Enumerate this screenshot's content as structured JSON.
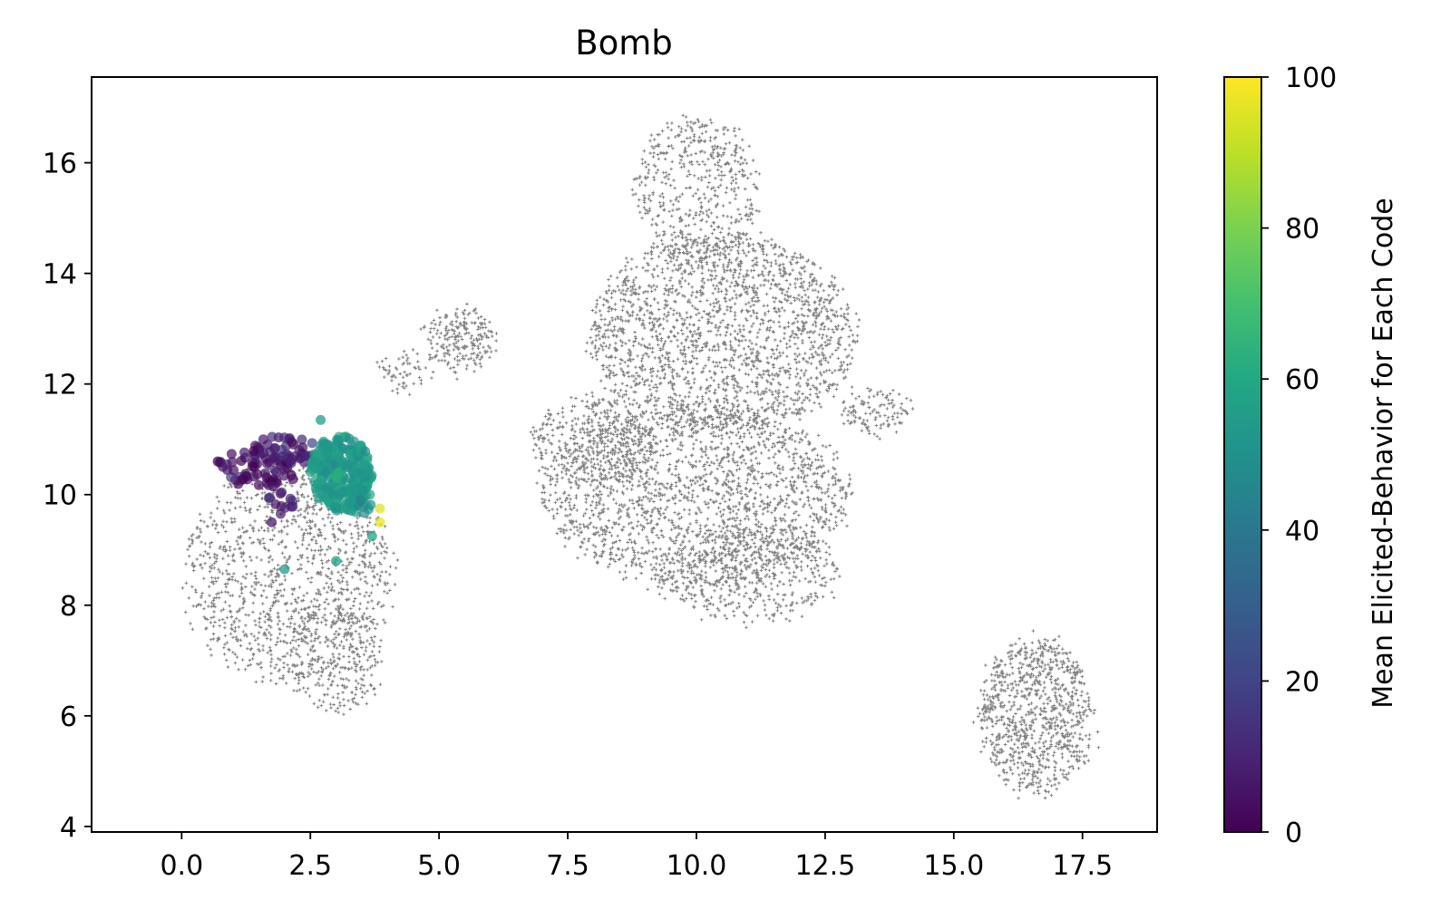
{
  "chart_data": {
    "type": "scatter",
    "title": "Bomb",
    "xlabel": "",
    "ylabel": "",
    "xlim": [
      -1.75,
      18.95
    ],
    "ylim": [
      3.9,
      17.55
    ],
    "x_ticks": [
      0.0,
      2.5,
      5.0,
      7.5,
      10.0,
      12.5,
      15.0,
      17.5
    ],
    "x_tick_labels": [
      "0.0",
      "2.5",
      "5.0",
      "7.5",
      "10.0",
      "12.5",
      "15.0",
      "17.5"
    ],
    "y_ticks": [
      4,
      6,
      8,
      10,
      12,
      14,
      16
    ],
    "y_tick_labels": [
      "4",
      "6",
      "8",
      "10",
      "12",
      "14",
      "16"
    ],
    "grid": false,
    "background_series": {
      "marker": "+",
      "color": "#808080",
      "regions": [
        {
          "cx": 2.1,
          "cy": 8.6,
          "rx": 2.0,
          "ry": 2.0,
          "n": 1300
        },
        {
          "cx": 3.0,
          "cy": 7.0,
          "rx": 0.9,
          "ry": 1.0,
          "n": 250
        },
        {
          "cx": 5.4,
          "cy": 12.8,
          "rx": 0.7,
          "ry": 0.55,
          "n": 220
        },
        {
          "cx": 4.3,
          "cy": 12.2,
          "rx": 0.5,
          "ry": 0.35,
          "n": 60
        },
        {
          "cx": 10.0,
          "cy": 15.5,
          "rx": 1.2,
          "ry": 1.3,
          "n": 500
        },
        {
          "cx": 10.5,
          "cy": 12.9,
          "rx": 2.6,
          "ry": 1.8,
          "n": 2000
        },
        {
          "cx": 10.0,
          "cy": 10.0,
          "rx": 3.0,
          "ry": 1.6,
          "n": 1900
        },
        {
          "cx": 11.0,
          "cy": 8.6,
          "rx": 1.8,
          "ry": 0.9,
          "n": 500
        },
        {
          "cx": 8.0,
          "cy": 11.0,
          "rx": 1.2,
          "ry": 0.8,
          "n": 400
        },
        {
          "cx": 13.5,
          "cy": 11.5,
          "rx": 0.7,
          "ry": 0.35,
          "n": 120
        },
        {
          "cx": 16.6,
          "cy": 6.0,
          "rx": 1.1,
          "ry": 1.4,
          "n": 900
        }
      ]
    },
    "highlight_series": {
      "colorbar_label": "Mean Elicited-Behavior for Each Code",
      "colorbar_range": [
        0,
        100
      ],
      "colorbar_ticks": [
        0,
        20,
        40,
        60,
        80,
        100
      ],
      "colormap": "viridis",
      "clusters": [
        {
          "cx": 1.5,
          "cy": 10.5,
          "rx": 0.8,
          "ry": 0.4,
          "value": 5,
          "n": 70
        },
        {
          "cx": 2.0,
          "cy": 10.8,
          "rx": 0.6,
          "ry": 0.3,
          "value": 8,
          "n": 30
        },
        {
          "cx": 1.9,
          "cy": 9.9,
          "rx": 0.35,
          "ry": 0.3,
          "value": 10,
          "n": 12
        },
        {
          "cx": 3.1,
          "cy": 10.4,
          "rx": 0.6,
          "ry": 0.7,
          "value": 54,
          "n": 260
        },
        {
          "cx": 3.5,
          "cy": 9.9,
          "rx": 0.3,
          "ry": 0.3,
          "value": 52,
          "n": 25
        }
      ],
      "points": [
        {
          "x": 2.0,
          "y": 8.65,
          "value": 55
        },
        {
          "x": 3.0,
          "y": 8.8,
          "value": 56
        },
        {
          "x": 3.7,
          "y": 9.25,
          "value": 58
        },
        {
          "x": 1.75,
          "y": 9.5,
          "value": 8
        },
        {
          "x": 3.85,
          "y": 9.5,
          "value": 97
        },
        {
          "x": 3.85,
          "y": 9.75,
          "value": 95
        },
        {
          "x": 2.7,
          "y": 11.35,
          "value": 55
        },
        {
          "x": 0.7,
          "y": 10.6,
          "value": 3
        }
      ]
    }
  }
}
